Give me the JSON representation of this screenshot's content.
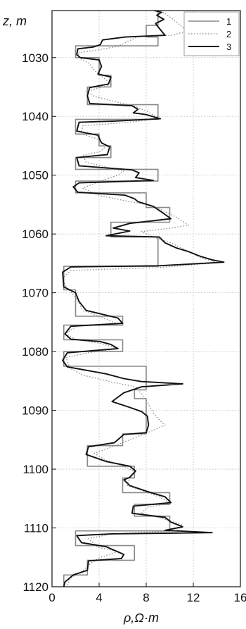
{
  "chart_data": {
    "type": "line",
    "xlabel": "ρ,Ω·m",
    "ylabel": "z, m",
    "xlim": [
      0,
      16
    ],
    "ylim": [
      1120,
      1022
    ],
    "y_inverted": true,
    "grid": "dotted",
    "legend_position": "top-right",
    "x_ticks": [
      "0",
      "4",
      "8",
      "12",
      "16"
    ],
    "y_ticks": [
      "1030",
      "1040",
      "1050",
      "1060",
      "1070",
      "1080",
      "1090",
      "1100",
      "1110",
      "1120"
    ],
    "series": [
      {
        "name": "1",
        "color": "#8a8a8a",
        "style": "solid",
        "points": [
          [
            9,
            1022
          ],
          [
            9,
            1024.5
          ],
          [
            8,
            1024.5
          ],
          [
            8,
            1026.5
          ],
          [
            9,
            1026.5
          ],
          [
            9,
            1028
          ],
          [
            2,
            1028
          ],
          [
            2,
            1030
          ],
          [
            4,
            1030
          ],
          [
            4,
            1033
          ],
          [
            5,
            1033
          ],
          [
            5,
            1035
          ],
          [
            3,
            1035
          ],
          [
            3,
            1038
          ],
          [
            9,
            1038
          ],
          [
            9,
            1040.5
          ],
          [
            2,
            1040.5
          ],
          [
            2,
            1043
          ],
          [
            4,
            1043
          ],
          [
            4,
            1045
          ],
          [
            5,
            1045
          ],
          [
            5,
            1047
          ],
          [
            2,
            1047
          ],
          [
            2,
            1049
          ],
          [
            9,
            1049
          ],
          [
            9,
            1051
          ],
          [
            2,
            1051
          ],
          [
            2,
            1053
          ],
          [
            8,
            1053
          ],
          [
            8,
            1055.5
          ],
          [
            10,
            1055.5
          ],
          [
            10,
            1058
          ],
          [
            5,
            1058
          ],
          [
            5,
            1060.5
          ],
          [
            9,
            1060.5
          ],
          [
            9,
            1065.5
          ],
          [
            1,
            1065.5
          ],
          [
            1,
            1069.5
          ],
          [
            2,
            1069.5
          ],
          [
            2,
            1074
          ],
          [
            6,
            1074
          ],
          [
            6,
            1075.5
          ],
          [
            1,
            1075.5
          ],
          [
            1,
            1078
          ],
          [
            6,
            1078
          ],
          [
            6,
            1080
          ],
          [
            1,
            1080
          ],
          [
            1,
            1082.5
          ],
          [
            8,
            1082.5
          ],
          [
            8,
            1086.5
          ],
          [
            7,
            1086.5
          ],
          [
            7,
            1088
          ],
          [
            8,
            1088
          ],
          [
            8,
            1094
          ],
          [
            6,
            1094
          ],
          [
            6,
            1096
          ],
          [
            3,
            1096
          ],
          [
            3,
            1099.5
          ],
          [
            7,
            1099.5
          ],
          [
            7,
            1101.5
          ],
          [
            6,
            1101.5
          ],
          [
            6,
            1104
          ],
          [
            10,
            1104
          ],
          [
            10,
            1106
          ],
          [
            7,
            1106
          ],
          [
            7,
            1108
          ],
          [
            10,
            1108
          ],
          [
            10,
            1110.5
          ],
          [
            2,
            1110.5
          ],
          [
            2,
            1113
          ],
          [
            7,
            1113
          ],
          [
            7,
            1115.5
          ],
          [
            3,
            1115.5
          ],
          [
            3,
            1118
          ],
          [
            1,
            1118
          ],
          [
            1,
            1120
          ]
        ]
      },
      {
        "name": "2",
        "color": "#8a8a8a",
        "style": "dotted",
        "points": [
          [
            9.2,
            1022
          ],
          [
            9.6,
            1022.5
          ],
          [
            10.3,
            1023.5
          ],
          [
            10.9,
            1024.5
          ],
          [
            11.4,
            1025.5
          ],
          [
            10.2,
            1026.2
          ],
          [
            7.3,
            1026.4
          ],
          [
            6.5,
            1027.2
          ],
          [
            5.6,
            1028.1
          ],
          [
            3.5,
            1028.8
          ],
          [
            2.2,
            1029.2
          ],
          [
            2.4,
            1030.2
          ],
          [
            3.2,
            1031
          ],
          [
            3.6,
            1032.2
          ],
          [
            4.3,
            1033.3
          ],
          [
            5.1,
            1034.6
          ],
          [
            4.3,
            1035
          ],
          [
            2.9,
            1035.8
          ],
          [
            3.6,
            1036.6
          ],
          [
            5.6,
            1037.6
          ],
          [
            7.1,
            1038.3
          ],
          [
            8.1,
            1039.2
          ],
          [
            9.1,
            1040.3
          ],
          [
            6.6,
            1041
          ],
          [
            2.6,
            1041.6
          ],
          [
            2.5,
            1043
          ],
          [
            3.8,
            1043.8
          ],
          [
            4.6,
            1045
          ],
          [
            4.1,
            1046
          ],
          [
            2.6,
            1046.6
          ],
          [
            2.9,
            1047.8
          ],
          [
            4.6,
            1048.6
          ],
          [
            6.1,
            1049.3
          ],
          [
            5.6,
            1050
          ],
          [
            4.1,
            1051
          ],
          [
            2.6,
            1052.2
          ],
          [
            4.1,
            1053.5
          ],
          [
            6.6,
            1054.5
          ],
          [
            8.6,
            1055.2
          ],
          [
            9.6,
            1056.2
          ],
          [
            10.6,
            1057.2
          ],
          [
            11.6,
            1058.5
          ],
          [
            10.1,
            1059
          ],
          [
            7.6,
            1059.6
          ],
          [
            8.6,
            1060.5
          ],
          [
            10.1,
            1061.5
          ],
          [
            11.6,
            1063
          ],
          [
            12.6,
            1064
          ],
          [
            14.1,
            1064.9
          ],
          [
            9.1,
            1065.7
          ],
          [
            1.6,
            1066.2
          ],
          [
            0.9,
            1067.5
          ],
          [
            1.2,
            1069
          ],
          [
            2.1,
            1071
          ],
          [
            2.6,
            1073
          ],
          [
            4.6,
            1074.5
          ],
          [
            5.6,
            1075.3
          ],
          [
            2.1,
            1075.7
          ],
          [
            1.1,
            1077
          ],
          [
            2.1,
            1078
          ],
          [
            4.1,
            1078.6
          ],
          [
            5.6,
            1079.5
          ],
          [
            3.1,
            1080.2
          ],
          [
            1.2,
            1081
          ],
          [
            1.5,
            1082.8
          ],
          [
            2.6,
            1084
          ],
          [
            5.1,
            1085.2
          ],
          [
            7.1,
            1086
          ],
          [
            7.6,
            1087.2
          ],
          [
            8.1,
            1088.6
          ],
          [
            8.6,
            1090.4
          ],
          [
            9.1,
            1091.6
          ],
          [
            9.6,
            1092.5
          ],
          [
            8.1,
            1093.8
          ],
          [
            6.6,
            1095
          ],
          [
            5.1,
            1096.2
          ],
          [
            3.6,
            1097.3
          ],
          [
            4.6,
            1098.5
          ],
          [
            6.1,
            1099.5
          ],
          [
            7.1,
            1100.5
          ],
          [
            6.6,
            1101.4
          ],
          [
            6.4,
            1102.8
          ],
          [
            7.6,
            1103.6
          ],
          [
            9.1,
            1104.7
          ],
          [
            10.1,
            1105.8
          ],
          [
            8.1,
            1106.5
          ],
          [
            7.6,
            1107.5
          ],
          [
            9.6,
            1108.5
          ],
          [
            11.1,
            1109.5
          ],
          [
            10.6,
            1110.5
          ],
          [
            5.1,
            1111
          ],
          [
            3.1,
            1111.8
          ],
          [
            3.9,
            1113.3
          ],
          [
            5.6,
            1114
          ],
          [
            4.1,
            1115
          ],
          [
            3.3,
            1116
          ],
          [
            2.6,
            1117.3
          ],
          [
            1.6,
            1118.5
          ],
          [
            1.2,
            1120
          ]
        ]
      },
      {
        "name": "3",
        "color": "#111111",
        "style": "solid",
        "points": [
          [
            8.7,
            1022
          ],
          [
            9.3,
            1022.3
          ],
          [
            8.9,
            1022.8
          ],
          [
            9.5,
            1023.5
          ],
          [
            8.8,
            1024.2
          ],
          [
            9.1,
            1025
          ],
          [
            9.6,
            1026.2
          ],
          [
            6.2,
            1026.5
          ],
          [
            4.3,
            1027
          ],
          [
            4.1,
            1027.8
          ],
          [
            3.5,
            1028.2
          ],
          [
            2.2,
            1028.5
          ],
          [
            2.1,
            1029.5
          ],
          [
            2.4,
            1030
          ],
          [
            4,
            1030.4
          ],
          [
            4.2,
            1031.5
          ],
          [
            3.9,
            1032.8
          ],
          [
            5,
            1033.3
          ],
          [
            4.8,
            1034.5
          ],
          [
            3.2,
            1035.1
          ],
          [
            3,
            1036.5
          ],
          [
            3.2,
            1037.8
          ],
          [
            6.8,
            1038.2
          ],
          [
            7.3,
            1038.8
          ],
          [
            6.9,
            1039.4
          ],
          [
            8,
            1039.7
          ],
          [
            9.2,
            1040.4
          ],
          [
            5.3,
            1040.8
          ],
          [
            2.3,
            1041
          ],
          [
            2.1,
            1042.5
          ],
          [
            3.9,
            1043.2
          ],
          [
            4.2,
            1044.5
          ],
          [
            4.9,
            1045.2
          ],
          [
            4.7,
            1046.5
          ],
          [
            2.1,
            1047
          ],
          [
            2.3,
            1048.4
          ],
          [
            6.8,
            1049.1
          ],
          [
            7.4,
            1049.6
          ],
          [
            7.1,
            1050.4
          ],
          [
            8.6,
            1050.9
          ],
          [
            2.3,
            1051.3
          ],
          [
            1.8,
            1052
          ],
          [
            2.2,
            1052.9
          ],
          [
            6.2,
            1053.4
          ],
          [
            7,
            1054
          ],
          [
            7.3,
            1054.5
          ],
          [
            8.6,
            1055.3
          ],
          [
            9.4,
            1056.4
          ],
          [
            10.1,
            1057.4
          ],
          [
            6.6,
            1058.2
          ],
          [
            5.2,
            1059
          ],
          [
            6.6,
            1059.5
          ],
          [
            4.6,
            1060.3
          ],
          [
            9.1,
            1060.5
          ],
          [
            9.6,
            1061.5
          ],
          [
            10.6,
            1062.4
          ],
          [
            11.6,
            1063
          ],
          [
            12.6,
            1063.8
          ],
          [
            13.6,
            1064.4
          ],
          [
            14.6,
            1064.8
          ],
          [
            9.1,
            1065.4
          ],
          [
            1.6,
            1065.6
          ],
          [
            0.9,
            1066.5
          ],
          [
            1,
            1069
          ],
          [
            2,
            1070
          ],
          [
            2.3,
            1071.5
          ],
          [
            2.9,
            1073
          ],
          [
            5.6,
            1074.3
          ],
          [
            6,
            1075.2
          ],
          [
            1.6,
            1075.7
          ],
          [
            1.1,
            1077
          ],
          [
            1.6,
            1077.9
          ],
          [
            4.1,
            1078.3
          ],
          [
            5,
            1078.8
          ],
          [
            5.6,
            1079.5
          ],
          [
            1.3,
            1080.2
          ],
          [
            0.9,
            1081.5
          ],
          [
            1.3,
            1082.6
          ],
          [
            4.6,
            1083.8
          ],
          [
            6.1,
            1084.6
          ],
          [
            7.6,
            1085.1
          ],
          [
            11.1,
            1085.5
          ],
          [
            7.6,
            1086
          ],
          [
            6.1,
            1087
          ],
          [
            5.1,
            1088.5
          ],
          [
            6.6,
            1089.5
          ],
          [
            7.6,
            1090.2
          ],
          [
            8.1,
            1091
          ],
          [
            8.2,
            1092.5
          ],
          [
            8,
            1093.8
          ],
          [
            6.1,
            1094.1
          ],
          [
            5.3,
            1095.5
          ],
          [
            3.1,
            1096.2
          ],
          [
            2.9,
            1097.5
          ],
          [
            4.6,
            1098.7
          ],
          [
            6.6,
            1099.5
          ],
          [
            7.1,
            1100.3
          ],
          [
            6.6,
            1101.4
          ],
          [
            6.1,
            1101.8
          ],
          [
            6.6,
            1102.8
          ],
          [
            8.1,
            1103.8
          ],
          [
            9.6,
            1104.7
          ],
          [
            10.1,
            1105.7
          ],
          [
            6.9,
            1106.3
          ],
          [
            6.8,
            1107.5
          ],
          [
            9.6,
            1108.2
          ],
          [
            10.1,
            1109
          ],
          [
            11.1,
            1109.8
          ],
          [
            9.6,
            1110.4
          ],
          [
            13.6,
            1110.8
          ],
          [
            5.1,
            1111
          ],
          [
            2.1,
            1111.3
          ],
          [
            2.5,
            1112.5
          ],
          [
            4.6,
            1113.2
          ],
          [
            6.1,
            1114.5
          ],
          [
            5.9,
            1115.2
          ],
          [
            3.1,
            1115.6
          ],
          [
            3,
            1117.2
          ],
          [
            1.8,
            1118
          ],
          [
            1.1,
            1119.2
          ],
          [
            1,
            1120
          ]
        ]
      }
    ]
  }
}
